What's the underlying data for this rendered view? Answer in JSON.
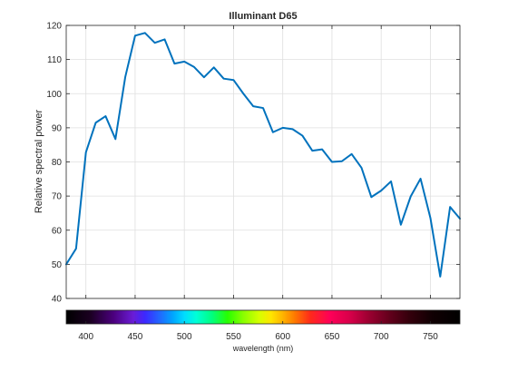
{
  "chart_data": {
    "type": "line",
    "title": "Illuminant D65",
    "ylabel": "Relative spectral power",
    "xlabel": "wavelength (nm)",
    "xlim": [
      380,
      780
    ],
    "ylim": [
      40,
      120
    ],
    "grid": true,
    "yticks": [
      40,
      50,
      60,
      70,
      80,
      90,
      100,
      110,
      120
    ],
    "xticks": [
      400,
      450,
      500,
      550,
      600,
      650,
      700,
      750
    ],
    "line_color": "#0072BD",
    "series": [
      {
        "x": [
          380,
          390,
          400,
          410,
          420,
          430,
          440,
          450,
          460,
          470,
          480,
          490,
          500,
          510,
          520,
          530,
          540,
          550,
          560,
          570,
          580,
          590,
          600,
          610,
          620,
          630,
          640,
          650,
          660,
          670,
          680,
          690,
          700,
          710,
          720,
          730,
          740,
          750,
          760,
          770,
          780
        ],
        "values": [
          50.0,
          54.6,
          82.8,
          91.5,
          93.4,
          86.7,
          104.9,
          117.0,
          117.8,
          114.9,
          115.9,
          108.8,
          109.4,
          107.8,
          104.8,
          107.7,
          104.4,
          104.0,
          100.0,
          96.3,
          95.8,
          88.7,
          90.0,
          89.6,
          87.7,
          83.3,
          83.7,
          80.0,
          80.2,
          82.3,
          78.3,
          69.7,
          71.6,
          74.3,
          61.6,
          69.9,
          75.1,
          63.6,
          46.4,
          66.8,
          63.4
        ]
      }
    ],
    "colorbar": {
      "label": "wavelength (nm)",
      "range": [
        380,
        780
      ],
      "ticks": [
        400,
        450,
        500,
        550,
        600,
        650,
        700,
        750
      ]
    }
  }
}
